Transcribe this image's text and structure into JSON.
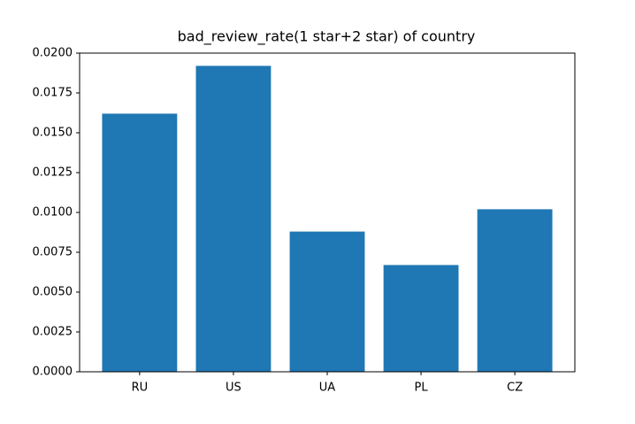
{
  "chart_data": {
    "type": "bar",
    "title": "bad_review_rate(1 star+2 star) of country",
    "categories": [
      "RU",
      "US",
      "UA",
      "PL",
      "CZ"
    ],
    "values": [
      0.0162,
      0.0192,
      0.0088,
      0.0067,
      0.0102
    ],
    "color": "#1f77b4",
    "ylim": [
      0,
      0.02
    ],
    "yticks": [
      {
        "value": 0,
        "label": "0.0000"
      },
      {
        "value": 0.0025,
        "label": "0.0025"
      },
      {
        "value": 0.005,
        "label": "0.0050"
      },
      {
        "value": 0.0075,
        "label": "0.0075"
      },
      {
        "value": 0.01,
        "label": "0.0100"
      },
      {
        "value": 0.0125,
        "label": "0.0125"
      },
      {
        "value": 0.015,
        "label": "0.0150"
      },
      {
        "value": 0.0175,
        "label": "0.0175"
      },
      {
        "value": 0.02,
        "label": "0.0200"
      }
    ]
  }
}
